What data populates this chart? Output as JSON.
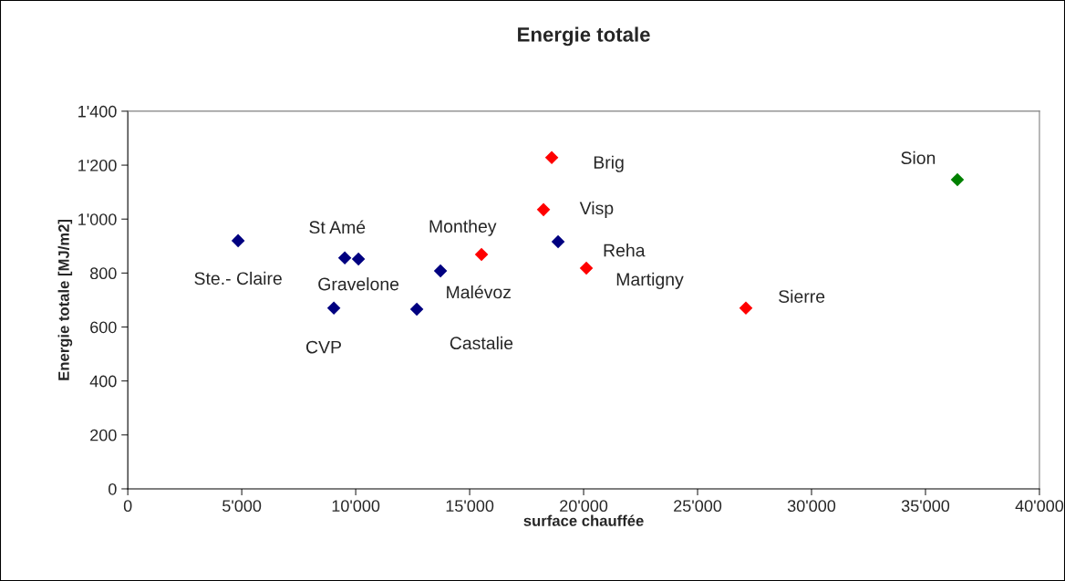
{
  "chart_data": {
    "type": "scatter",
    "title": "Energie totale",
    "xlabel": "surface chauffée",
    "ylabel": "Energie totale [MJ/m2]",
    "series": [
      {
        "color": "#000080",
        "x": [
          4840,
          9520,
          10120,
          9040,
          12680,
          13720,
          18880
        ],
        "values": [
          920,
          856,
          852,
          670,
          666,
          808,
          916
        ]
      },
      {
        "color": "#ff0000",
        "x": [
          15520,
          18600,
          18240,
          20120,
          27120
        ],
        "values": [
          869,
          1228,
          1035,
          818,
          670
        ]
      },
      {
        "color": "#008000",
        "x": [
          36400
        ],
        "values": [
          1146
        ]
      }
    ],
    "annotations": [
      {
        "text": "Ste.- Claire",
        "x": 4840,
        "y": 920
      },
      {
        "text": "St Amé",
        "x": 9520,
        "y": 856
      },
      {
        "text": "Gravelone",
        "x": 10120,
        "y": 852
      },
      {
        "text": "CVP",
        "x": 9040,
        "y": 670
      },
      {
        "text": "Castalie",
        "x": 12680,
        "y": 666
      },
      {
        "text": "Malévoz",
        "x": 13720,
        "y": 808
      },
      {
        "text": "Reha",
        "x": 18880,
        "y": 916
      },
      {
        "text": "Monthey",
        "x": 15520,
        "y": 869
      },
      {
        "text": "Brig",
        "x": 18600,
        "y": 1228
      },
      {
        "text": "Visp",
        "x": 18240,
        "y": 1035
      },
      {
        "text": "Martigny",
        "x": 20120,
        "y": 818
      },
      {
        "text": "Sierre",
        "x": 27120,
        "y": 670
      },
      {
        "text": "Sion",
        "x": 36400,
        "y": 1146
      }
    ],
    "xlim": [
      0,
      40000
    ],
    "xticks": [
      0,
      {
        "value": 5000,
        "label": "5'000"
      },
      {
        "value": 10000,
        "label": "10'000"
      },
      {
        "value": 15000,
        "label": "15'000"
      },
      {
        "value": 20000,
        "label": "20'000"
      },
      {
        "value": 25000,
        "label": "25'000"
      },
      {
        "value": 30000,
        "label": "30'000"
      },
      {
        "value": 35000,
        "label": "35'000"
      },
      {
        "value": 40000,
        "label": "40'000"
      }
    ],
    "ylim": [
      0,
      1400
    ],
    "yticks": [
      0,
      200,
      400,
      600,
      800,
      {
        "value": 1000,
        "label": "1'000"
      },
      {
        "value": 1200,
        "label": "1'200"
      },
      {
        "value": 1400,
        "label": "1'400"
      }
    ],
    "grid": false,
    "marker": "diamond"
  }
}
